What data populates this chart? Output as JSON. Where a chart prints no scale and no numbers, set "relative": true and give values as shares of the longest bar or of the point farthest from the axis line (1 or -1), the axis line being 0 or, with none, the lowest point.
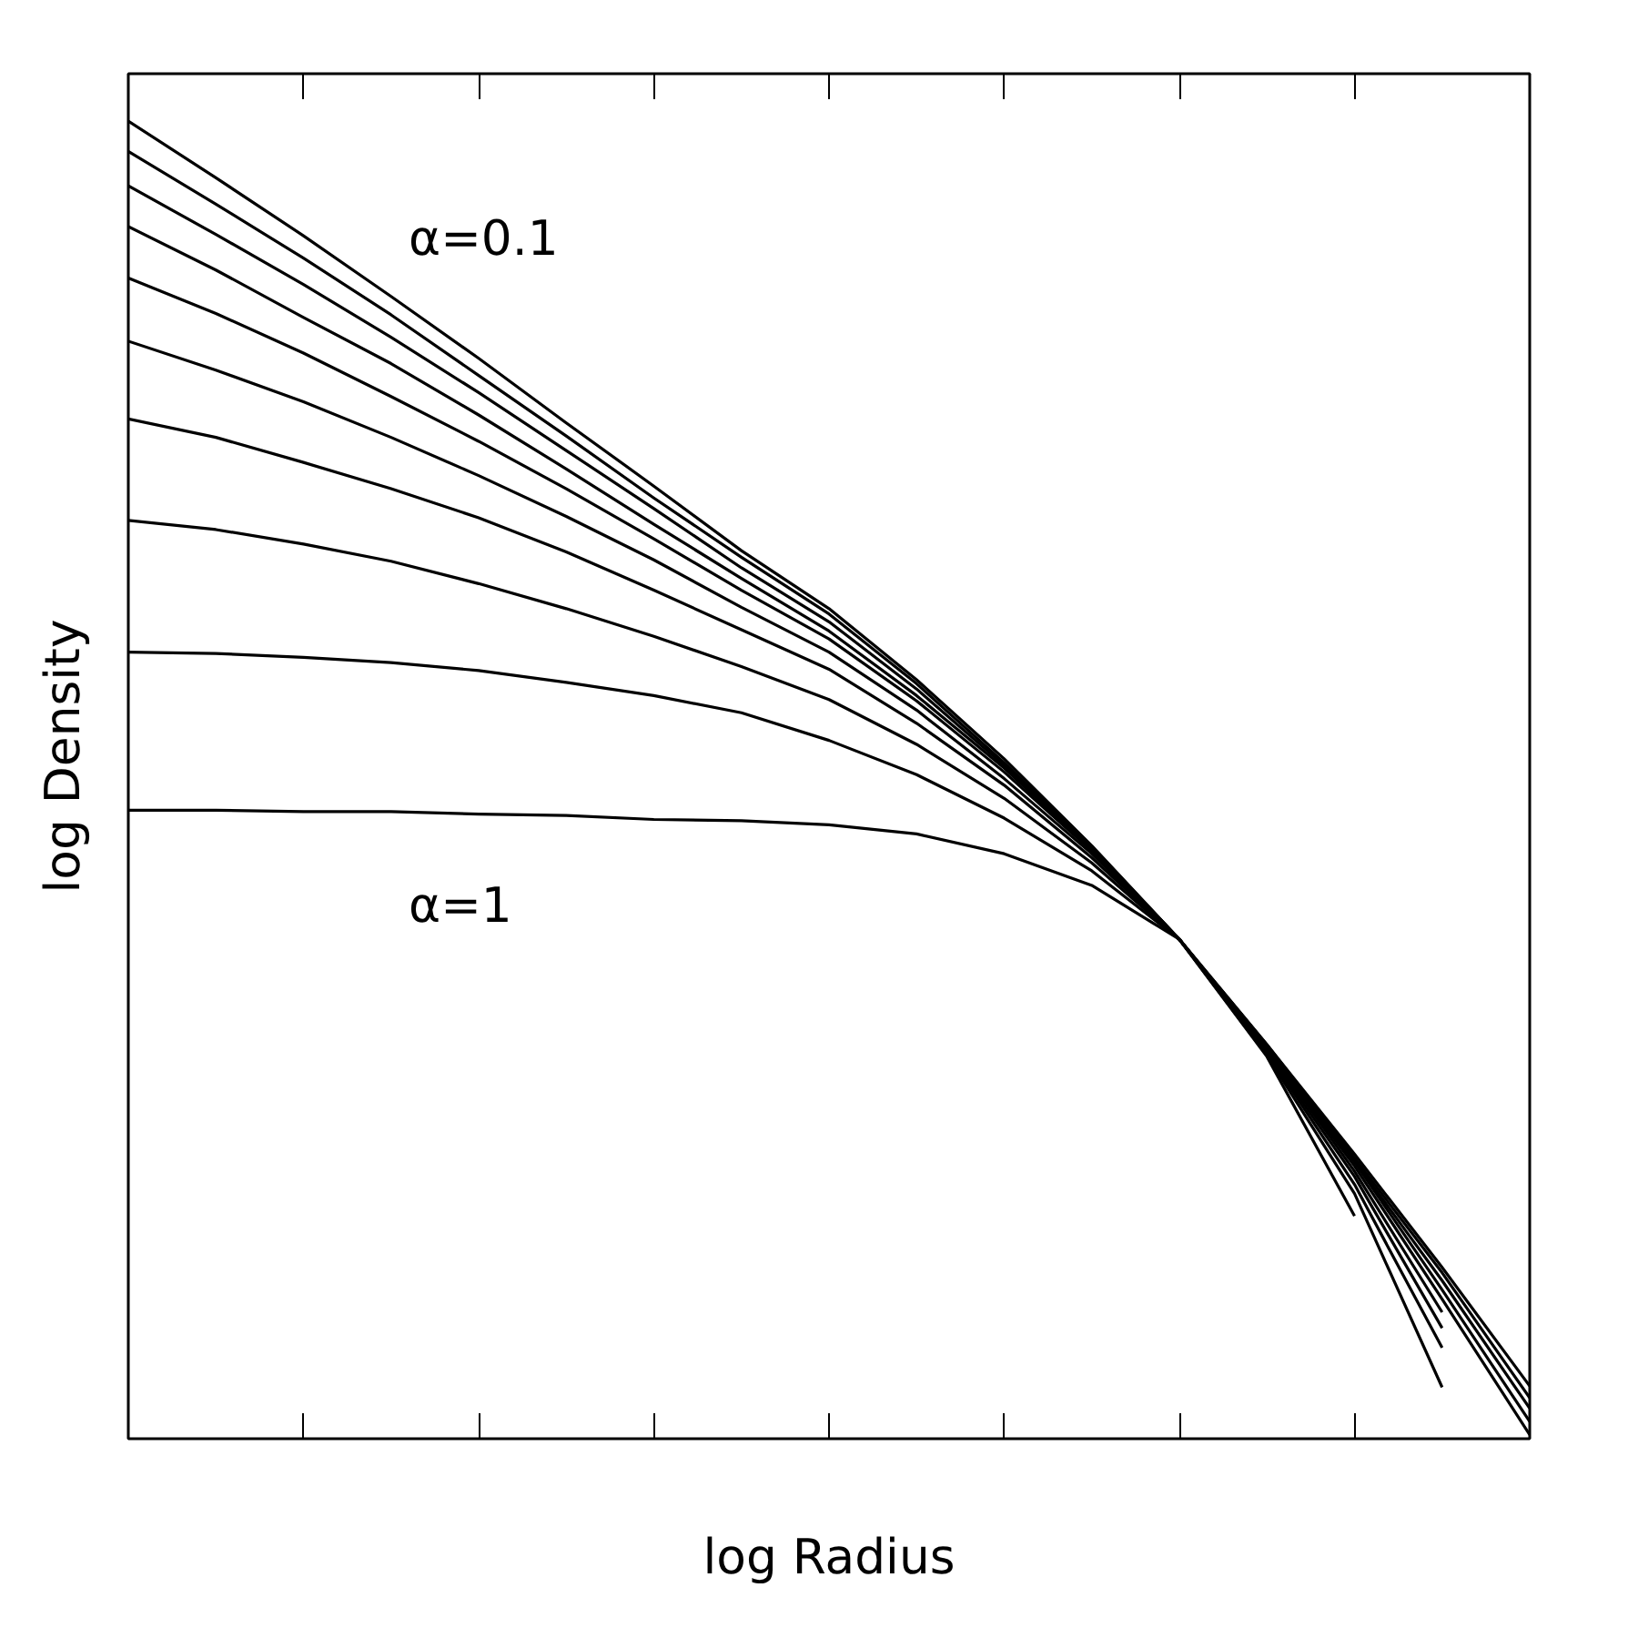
{
  "chart_data": {
    "type": "line",
    "relative": true,
    "xlabel": "log Radius",
    "ylabel": "log Density",
    "grid": false,
    "marker": "none",
    "line_style": "solid",
    "categories": [
      null,
      null,
      null,
      null,
      null,
      null,
      null,
      null,
      null,
      null,
      null,
      null,
      null,
      null,
      null,
      null,
      null
    ],
    "annotations": [
      "α=0.1",
      "α=1"
    ],
    "series": [
      {
        "color": "#000000",
        "values": [
          1.0,
          0.957,
          0.913,
          0.867,
          0.82,
          0.771,
          0.723,
          0.674,
          0.63,
          0.576,
          0.516,
          0.45,
          0.379,
          0.299,
          0.216,
          0.13,
          0.04
        ]
      },
      {
        "color": "#000000",
        "values": [
          0.977,
          0.937,
          0.896,
          0.853,
          0.807,
          0.761,
          0.714,
          0.669,
          0.626,
          0.573,
          0.513,
          0.449,
          0.379,
          0.299,
          0.213,
          0.126,
          0.031
        ]
      },
      {
        "color": "#000000",
        "values": [
          0.951,
          0.914,
          0.876,
          0.836,
          0.794,
          0.75,
          0.706,
          0.661,
          0.62,
          0.569,
          0.511,
          0.449,
          0.379,
          0.297,
          0.211,
          0.12,
          0.023
        ]
      },
      {
        "color": "#000000",
        "values": [
          0.92,
          0.887,
          0.851,
          0.816,
          0.777,
          0.736,
          0.694,
          0.653,
          0.613,
          0.564,
          0.509,
          0.447,
          0.379,
          0.297,
          0.21,
          0.113,
          0.013
        ]
      },
      {
        "color": "#000000",
        "values": [
          0.881,
          0.854,
          0.824,
          0.791,
          0.757,
          0.721,
          0.683,
          0.644,
          0.607,
          0.56,
          0.506,
          0.446,
          0.379,
          0.296,
          0.207,
          0.106,
          0.003
        ]
      },
      {
        "color": "#000000",
        "values": [
          0.833,
          0.811,
          0.787,
          0.76,
          0.731,
          0.7,
          0.667,
          0.631,
          0.597,
          0.553,
          0.501,
          0.444,
          0.379,
          0.296,
          0.203,
          0.096,
          null
        ]
      },
      {
        "color": "#000000",
        "values": [
          0.774,
          0.76,
          0.741,
          0.721,
          0.699,
          0.673,
          0.644,
          0.614,
          0.584,
          0.543,
          0.496,
          0.441,
          0.379,
          0.294,
          0.199,
          0.084,
          null
        ]
      },
      {
        "color": "#000000",
        "values": [
          0.697,
          0.69,
          0.679,
          0.666,
          0.649,
          0.63,
          0.609,
          0.586,
          0.561,
          0.527,
          0.486,
          0.437,
          0.379,
          0.293,
          0.193,
          0.069,
          null
        ]
      },
      {
        "color": "#000000",
        "values": [
          0.597,
          0.596,
          0.593,
          0.589,
          0.583,
          0.574,
          0.564,
          0.551,
          0.53,
          0.504,
          0.471,
          0.431,
          0.379,
          0.291,
          0.186,
          0.039,
          null
        ]
      },
      {
        "color": "#000000",
        "values": [
          0.477,
          0.477,
          0.476,
          0.476,
          0.474,
          0.473,
          0.47,
          0.469,
          0.466,
          0.459,
          0.444,
          0.42,
          0.379,
          0.29,
          0.169,
          null,
          null
        ]
      }
    ]
  }
}
